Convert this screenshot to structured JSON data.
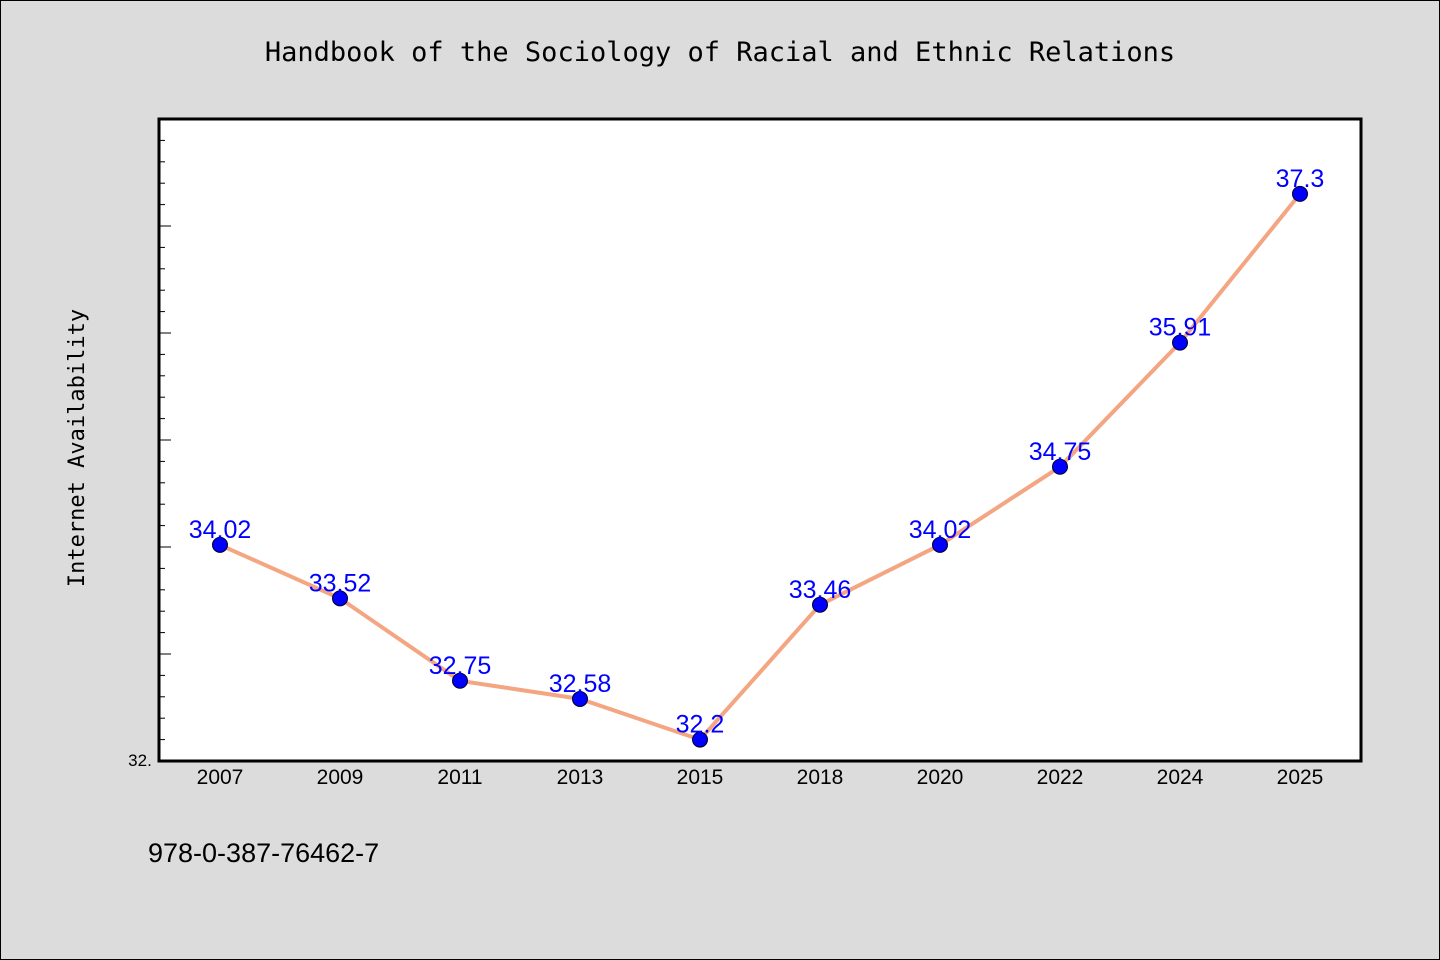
{
  "chart_data": {
    "type": "line",
    "title": "Handbook of the Sociology of Racial and Ethnic Relations",
    "xlabel": "",
    "ylabel": "Internet Availability",
    "categories": [
      "2007",
      "2009",
      "2011",
      "2013",
      "2015",
      "2018",
      "2020",
      "2022",
      "2024",
      "2025"
    ],
    "series": [
      {
        "values": [
          34.02,
          33.52,
          32.75,
          32.58,
          32.2,
          33.46,
          34.02,
          34.75,
          35.91,
          37.3
        ],
        "labels": [
          "34.02",
          "33.52",
          "32.75",
          "32.58",
          "32.2",
          "33.46",
          "34.02",
          "34.75",
          "35.91",
          "37.3"
        ]
      }
    ],
    "ylim": [
      32,
      38
    ],
    "ytick_label": "32.",
    "grid": false,
    "legend": "none",
    "footer": "978-0-387-76462-7",
    "colors": {
      "background": "#dcdcdc",
      "plot_background": "#ffffff",
      "line": "#f4a582",
      "marker": "#0000ff",
      "data_label": "#0000ff",
      "text": "#000000"
    }
  }
}
